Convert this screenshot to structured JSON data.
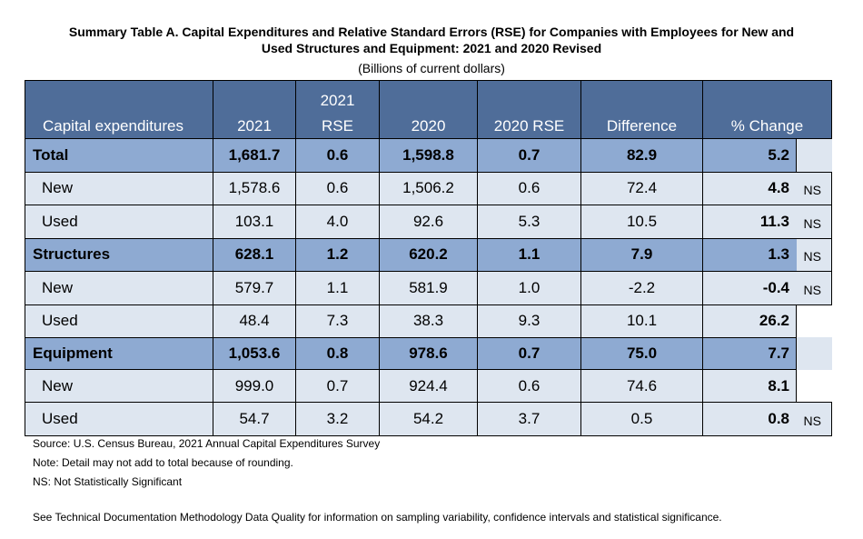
{
  "title_line1": "Summary Table A. Capital Expenditures and Relative Standard Errors (RSE) for Companies with Employees for New and",
  "title_line2": "Used Structures and Equipment: 2021 and 2020 Revised",
  "subtitle": "(Billions of current dollars)",
  "headers": {
    "capital": "Capital expenditures",
    "y2021": "2021",
    "rse2021_top": "2021",
    "rse2021_bottom": "RSE",
    "y2020": "2020",
    "rse2020": "2020 RSE",
    "difference": "Difference",
    "pct_change": "% Change"
  },
  "rows": [
    {
      "label": "Total",
      "v2021": "1,681.7",
      "rse2021": "0.6",
      "v2020": "1,598.8",
      "rse2020": "0.7",
      "diff": "82.9",
      "pct": "5.2",
      "ns": ""
    },
    {
      "label": "New",
      "v2021": "1,578.6",
      "rse2021": "0.6",
      "v2020": "1,506.2",
      "rse2020": "0.6",
      "diff": "72.4",
      "pct": "4.8",
      "ns": "NS"
    },
    {
      "label": "Used",
      "v2021": "103.1",
      "rse2021": "4.0",
      "v2020": "92.6",
      "rse2020": "5.3",
      "diff": "10.5",
      "pct": "11.3",
      "ns": "NS"
    },
    {
      "label": "Structures",
      "v2021": "628.1",
      "rse2021": "1.2",
      "v2020": "620.2",
      "rse2020": "1.1",
      "diff": "7.9",
      "pct": "1.3",
      "ns": "NS"
    },
    {
      "label": "New",
      "v2021": "579.7",
      "rse2021": "1.1",
      "v2020": "581.9",
      "rse2020": "1.0",
      "diff": "-2.2",
      "pct": "-0.4",
      "ns": "NS"
    },
    {
      "label": "Used",
      "v2021": "48.4",
      "rse2021": "7.3",
      "v2020": "38.3",
      "rse2020": "9.3",
      "diff": "10.1",
      "pct": "26.2",
      "ns": ""
    },
    {
      "label": "Equipment",
      "v2021": "1,053.6",
      "rse2021": "0.8",
      "v2020": "978.6",
      "rse2020": "0.7",
      "diff": "75.0",
      "pct": "7.7",
      "ns": ""
    },
    {
      "label": "New",
      "v2021": "999.0",
      "rse2021": "0.7",
      "v2020": "924.4",
      "rse2020": "0.6",
      "diff": "74.6",
      "pct": "8.1",
      "ns": ""
    },
    {
      "label": "Used",
      "v2021": "54.7",
      "rse2021": "3.2",
      "v2020": "54.2",
      "rse2020": "3.7",
      "diff": "0.5",
      "pct": "0.8",
      "ns": "NS"
    }
  ],
  "notes": {
    "source": "Source: U.S. Census Bureau, 2021 Annual Capital Expenditures Survey",
    "note": "Note: Detail may not add to total because of rounding.",
    "ns": "NS: Not Statistically Significant",
    "see": "See Technical Documentation Methodology Data Quality for information on sampling variability, confidence intervals and statistical significance."
  }
}
